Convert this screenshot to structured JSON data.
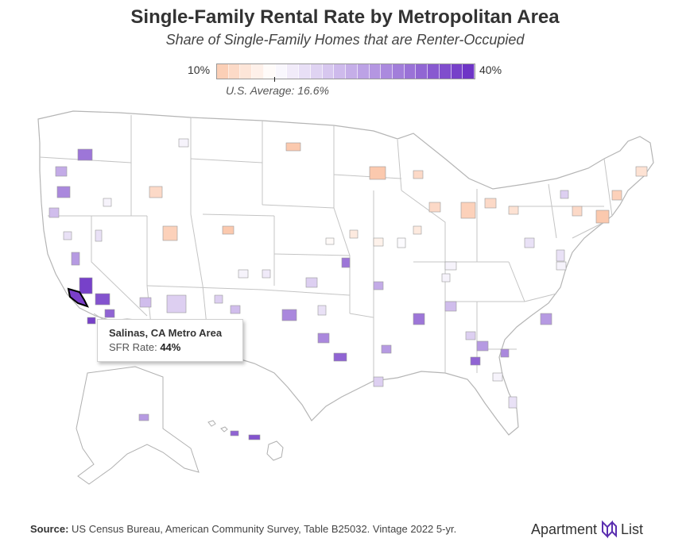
{
  "header": {
    "title": "Single-Family Rental Rate by Metropolitan Area",
    "subtitle": "Share of Single-Family Homes that are Renter-Occupied"
  },
  "legend": {
    "min_label": "10%",
    "max_label": "40%",
    "average_label": "U.S. Average: 16.6%",
    "average_value": 16.6,
    "range": [
      10,
      40
    ],
    "colors": {
      "low": "#fbc9ae",
      "mid": "#ffffff",
      "high": "#6a2fc4",
      "state_border": "#bdbdbd",
      "metro_border": "#9a9a9a",
      "highlight_border": "#000000"
    }
  },
  "tooltip": {
    "title": "Salinas, CA Metro Area",
    "label": "SFR Rate:",
    "value": "44%",
    "value_number": 44
  },
  "footer": {
    "source_label": "Source:",
    "source_text": "US Census Bureau, American Community Survey, Table B25032. Vintage 2022 5-yr.",
    "brand_left": "Apartment",
    "brand_right": "List",
    "brand_icon": "apartment-list-logo-icon"
  }
}
